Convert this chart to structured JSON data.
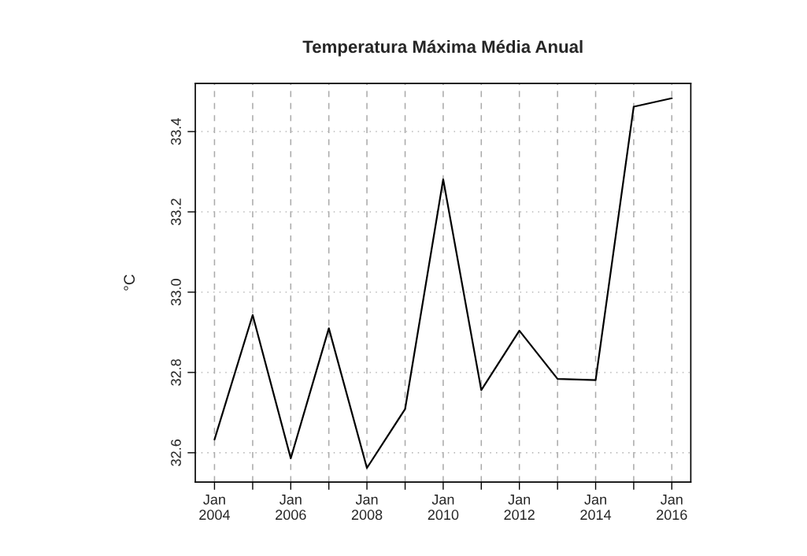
{
  "chart_data": {
    "type": "line",
    "title": "Temperatura Máxima Média Anual",
    "ylabel": "°C",
    "x": [
      "2004",
      "2005",
      "2006",
      "2007",
      "2008",
      "2009",
      "2010",
      "2011",
      "2012",
      "2013",
      "2014",
      "2015",
      "2016"
    ],
    "series": [
      {
        "color": "#000000",
        "values": [
          32.633,
          32.943,
          32.586,
          32.91,
          32.562,
          32.709,
          33.281,
          32.756,
          32.904,
          32.784,
          32.781,
          33.462,
          33.483
        ]
      }
    ],
    "xlim": [
      "2003-07",
      "2016-07"
    ],
    "xticks": [
      {
        "value": "2004",
        "label": "Jan\n2004"
      },
      {
        "value": "2005",
        "label": null
      },
      {
        "value": "2006",
        "label": "Jan\n2006"
      },
      {
        "value": "2007",
        "label": null
      },
      {
        "value": "2008",
        "label": "Jan\n2008"
      },
      {
        "value": "2009",
        "label": null
      },
      {
        "value": "2010",
        "label": "Jan\n2010"
      },
      {
        "value": "2011",
        "label": null
      },
      {
        "value": "2012",
        "label": "Jan\n2012"
      },
      {
        "value": "2013",
        "label": null
      },
      {
        "value": "2014",
        "label": "Jan\n2014"
      },
      {
        "value": "2015",
        "label": null
      },
      {
        "value": "2016",
        "label": "Jan\n2016"
      }
    ],
    "ylim": [
      32.527,
      33.52
    ],
    "yticks": [
      32.6,
      32.8,
      {
        "value": 33,
        "label": "33.0"
      },
      33.2,
      33.4
    ],
    "grid": true,
    "marker": "none",
    "line_style": "solid"
  }
}
